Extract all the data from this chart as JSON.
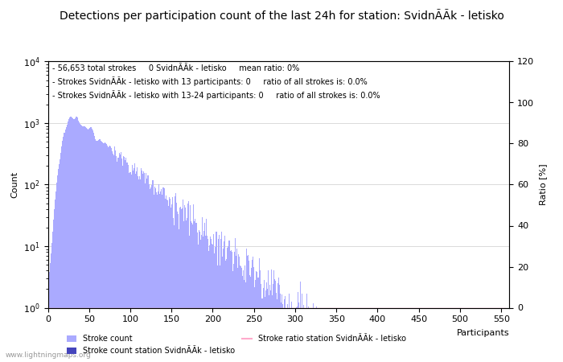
{
  "title": "Detections per participation count of the last 24h for station: SvidnÃÃk - letisko",
  "xlabel": "Participants",
  "ylabel_left": "Count",
  "ylabel_right": "Ratio [%]",
  "annotation_lines": [
    "56,653 total strokes     0 SvidnÃÃk - letisko     mean ratio: 0%",
    "Strokes SvidnÃÃk - letisko with 13 participants: 0     ratio of all strokes is: 0.0%",
    "Strokes SvidnÃÃk - letisko with 13-24 participants: 0     ratio of all strokes is: 0.0%"
  ],
  "bar_color_main": "#aaaaff",
  "bar_color_station": "#4444bb",
  "ratio_line_color": "#ffaacc",
  "background_color": "#ffffff",
  "xlim": [
    0,
    560
  ],
  "ylim_left": [
    1,
    10000
  ],
  "ylim_right": [
    0,
    120
  ],
  "yticks_right": [
    0,
    20,
    40,
    60,
    80,
    100,
    120
  ],
  "xticks": [
    0,
    50,
    100,
    150,
    200,
    250,
    300,
    350,
    400,
    450,
    500,
    550
  ],
  "legend_entries": [
    "Stroke count",
    "Stroke count station SvidnÃÃk - letisko",
    "Stroke ratio station SvidnÃÃk - letisko"
  ],
  "watermark": "www.lightningmaps.org",
  "title_fontsize": 10,
  "label_fontsize": 8,
  "annotation_fontsize": 7,
  "tick_fontsize": 8
}
